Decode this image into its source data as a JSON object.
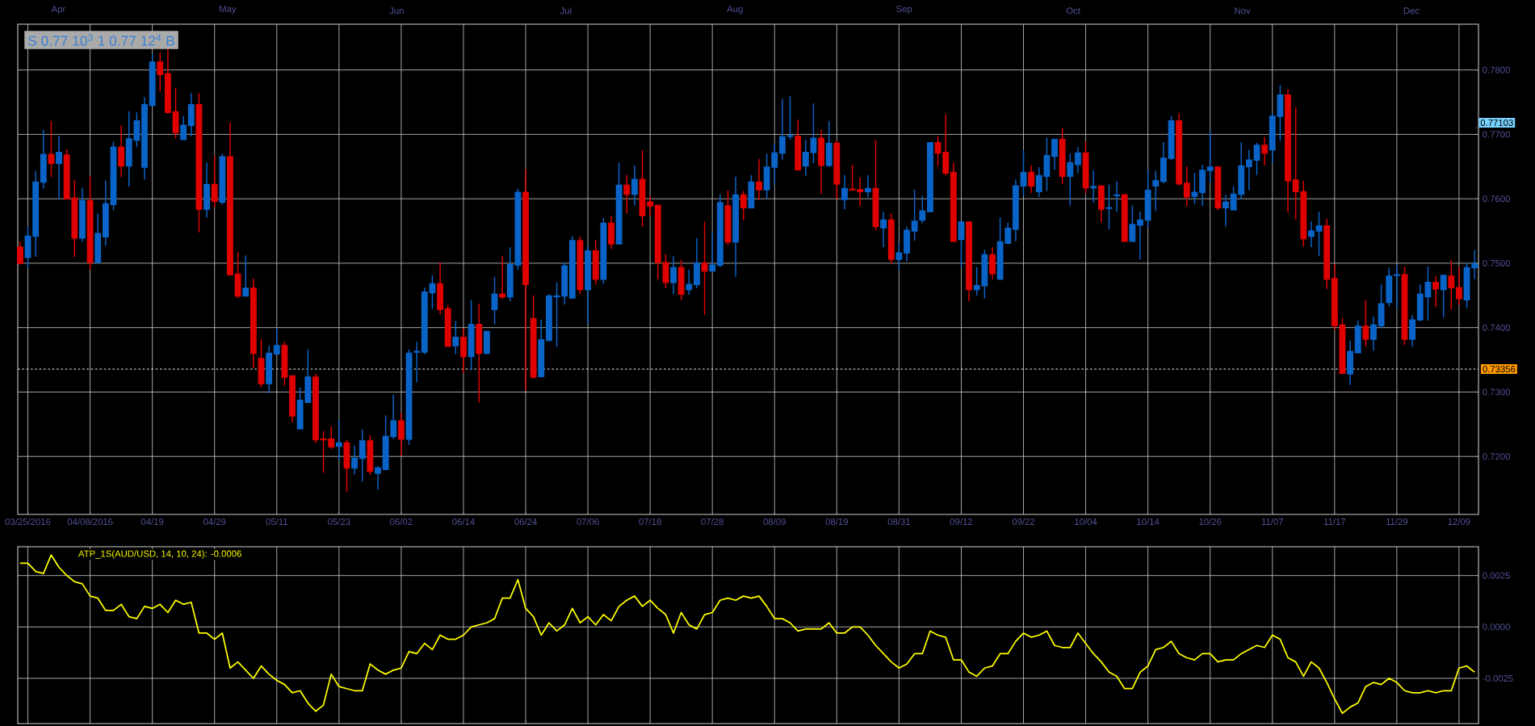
{
  "chart_data": [
    {
      "type": "candlestick",
      "categories": [
        null,
        "03/25/2016",
        null,
        null,
        null,
        null,
        null,
        null,
        null,
        "04/08/2016",
        null,
        null,
        null,
        null,
        null,
        null,
        null,
        "04/19",
        null,
        null,
        null,
        null,
        null,
        null,
        null,
        "04/29",
        null,
        null,
        null,
        null,
        null,
        null,
        null,
        "05/11",
        null,
        null,
        null,
        null,
        null,
        null,
        null,
        "05/23",
        null,
        null,
        null,
        null,
        null,
        null,
        null,
        "06/02",
        null,
        null,
        null,
        null,
        null,
        null,
        null,
        "06/14",
        null,
        null,
        null,
        null,
        null,
        null,
        null,
        "06/24",
        null,
        null,
        null,
        null,
        null,
        null,
        null,
        "07/06",
        null,
        null,
        null,
        null,
        null,
        null,
        null,
        "07/18",
        null,
        null,
        null,
        null,
        null,
        null,
        null,
        "07/28",
        null,
        null,
        null,
        null,
        null,
        null,
        null,
        "08/09",
        null,
        null,
        null,
        null,
        null,
        null,
        null,
        "08/19",
        null,
        null,
        null,
        null,
        null,
        null,
        null,
        "08/31",
        null,
        null,
        null,
        null,
        null,
        null,
        null,
        "09/12",
        null,
        null,
        null,
        null,
        null,
        null,
        null,
        "09/22",
        null,
        null,
        null,
        null,
        null,
        null,
        null,
        "10/04",
        null,
        null,
        null,
        null,
        null,
        null,
        null,
        "10/14",
        null,
        null,
        null,
        null,
        null,
        null,
        null,
        "10/26",
        null,
        null,
        null,
        null,
        null,
        null,
        null,
        "11/07",
        null,
        null,
        null,
        null,
        null,
        null,
        null,
        "11/17",
        null,
        null,
        null,
        null,
        null,
        null,
        null,
        "11/29",
        null,
        null,
        null,
        null,
        null,
        null,
        null,
        "12/09",
        null,
        null
      ],
      "ohlc": [
        [
          0.7525,
          0.7533,
          0.7498,
          0.75
        ],
        [
          0.7509,
          0.7557,
          0.7493,
          0.7542
        ],
        [
          0.7542,
          0.7643,
          0.751,
          0.7626
        ],
        [
          0.7626,
          0.7707,
          0.7616,
          0.7669
        ],
        [
          0.7669,
          0.7721,
          0.7634,
          0.7655
        ],
        [
          0.7655,
          0.7698,
          0.76,
          0.7672
        ],
        [
          0.7668,
          0.7677,
          0.76,
          0.76
        ],
        [
          0.7601,
          0.7629,
          0.751,
          0.7539
        ],
        [
          0.7539,
          0.7617,
          0.7533,
          0.7597
        ],
        [
          0.7597,
          0.7635,
          0.749,
          0.7501
        ],
        [
          0.7501,
          0.7577,
          0.7501,
          0.7546
        ],
        [
          0.7541,
          0.7628,
          0.7527,
          0.7592
        ],
        [
          0.7591,
          0.7689,
          0.7582,
          0.768
        ],
        [
          0.768,
          0.7714,
          0.7634,
          0.7651
        ],
        [
          0.7651,
          0.7736,
          0.7619,
          0.7693
        ],
        [
          0.7691,
          0.7734,
          0.768,
          0.7721
        ],
        [
          0.7649,
          0.7758,
          0.763,
          0.7746
        ],
        [
          0.7745,
          0.7825,
          0.7745,
          0.7812
        ],
        [
          0.7812,
          0.7827,
          0.7767,
          0.7793
        ],
        [
          0.7794,
          0.7834,
          0.7734,
          0.7734
        ],
        [
          0.7735,
          0.7772,
          0.7694,
          0.7703
        ],
        [
          0.7692,
          0.7728,
          0.7692,
          0.7714
        ],
        [
          0.7714,
          0.7764,
          0.7697,
          0.7746
        ],
        [
          0.7746,
          0.7764,
          0.7548,
          0.7584
        ],
        [
          0.7584,
          0.7656,
          0.7571,
          0.7622
        ],
        [
          0.7622,
          0.7667,
          0.7587,
          0.7596
        ],
        [
          0.7595,
          0.767,
          0.7591,
          0.7665
        ],
        [
          0.7665,
          0.7718,
          0.7482,
          0.7482
        ],
        [
          0.7483,
          0.7517,
          0.7446,
          0.7449
        ],
        [
          0.7449,
          0.7512,
          0.7449,
          0.7461
        ],
        [
          0.7461,
          0.7476,
          0.7337,
          0.736
        ],
        [
          0.7352,
          0.7382,
          0.7307,
          0.7313
        ],
        [
          0.7313,
          0.7372,
          0.7298,
          0.736
        ],
        [
          0.7359,
          0.74,
          0.7359,
          0.7372
        ],
        [
          0.7372,
          0.7378,
          0.731,
          0.7323
        ],
        [
          0.7325,
          0.7325,
          0.7253,
          0.7263
        ],
        [
          0.7243,
          0.7307,
          0.7243,
          0.7287
        ],
        [
          0.7284,
          0.7366,
          0.7284,
          0.7323
        ],
        [
          0.7323,
          0.7329,
          0.7221,
          0.7226
        ],
        [
          0.7227,
          0.7239,
          0.7175,
          0.7226
        ],
        [
          0.7227,
          0.7247,
          0.7212,
          0.7215
        ],
        [
          0.7216,
          0.7256,
          0.7194,
          0.7221
        ],
        [
          0.7221,
          0.7226,
          0.7145,
          0.7182
        ],
        [
          0.7182,
          0.7217,
          0.7172,
          0.7197
        ],
        [
          0.7197,
          0.7242,
          0.7161,
          0.7224
        ],
        [
          0.7224,
          0.7233,
          0.7171,
          0.7177
        ],
        [
          0.7174,
          0.7185,
          0.7149,
          0.7182
        ],
        [
          0.718,
          0.7264,
          0.718,
          0.7231
        ],
        [
          0.7231,
          0.7296,
          0.7227,
          0.7255
        ],
        [
          0.7255,
          0.7268,
          0.7201,
          0.7227
        ],
        [
          0.7227,
          0.7366,
          0.7218,
          0.736
        ],
        [
          0.7362,
          0.7378,
          0.7315,
          0.7363
        ],
        [
          0.7362,
          0.7462,
          0.7359,
          0.7455
        ],
        [
          0.7454,
          0.7481,
          0.7429,
          0.7468
        ],
        [
          0.7468,
          0.7501,
          0.742,
          0.7428
        ],
        [
          0.7429,
          0.7435,
          0.737,
          0.7371
        ],
        [
          0.7372,
          0.741,
          0.7359,
          0.7385
        ],
        [
          0.7385,
          0.7399,
          0.7329,
          0.7355
        ],
        [
          0.7355,
          0.7443,
          0.7334,
          0.7405
        ],
        [
          0.7405,
          0.7437,
          0.7284,
          0.736
        ],
        [
          0.736,
          0.7394,
          0.7359,
          0.7394
        ],
        [
          0.7428,
          0.7479,
          0.7405,
          0.7452
        ],
        [
          0.7452,
          0.7511,
          0.7444,
          0.7448
        ],
        [
          0.7448,
          0.7525,
          0.7441,
          0.7498
        ],
        [
          0.7497,
          0.7616,
          0.749,
          0.761
        ],
        [
          0.761,
          0.7646,
          0.7302,
          0.7467
        ],
        [
          0.7414,
          0.745,
          0.7321,
          0.7323
        ],
        [
          0.7324,
          0.7412,
          0.7323,
          0.7381
        ],
        [
          0.738,
          0.7452,
          0.7379,
          0.7449
        ],
        [
          0.7448,
          0.747,
          0.737,
          0.7449
        ],
        [
          0.7449,
          0.7501,
          0.7436,
          0.7496
        ],
        [
          0.7446,
          0.7542,
          0.7446,
          0.7535
        ],
        [
          0.7535,
          0.7542,
          0.7452,
          0.7459
        ],
        [
          0.7459,
          0.7526,
          0.7405,
          0.7519
        ],
        [
          0.7519,
          0.7536,
          0.7467,
          0.7475
        ],
        [
          0.7475,
          0.757,
          0.7468,
          0.7562
        ],
        [
          0.7562,
          0.7574,
          0.7522,
          0.753
        ],
        [
          0.753,
          0.7656,
          0.753,
          0.7621
        ],
        [
          0.7621,
          0.7637,
          0.7577,
          0.7607
        ],
        [
          0.7607,
          0.7652,
          0.759,
          0.763
        ],
        [
          0.763,
          0.7675,
          0.7557,
          0.7574
        ],
        [
          0.7595,
          0.7605,
          0.7574,
          0.7589
        ],
        [
          0.759,
          0.759,
          0.7475,
          0.7501
        ],
        [
          0.7501,
          0.7514,
          0.7461,
          0.747
        ],
        [
          0.747,
          0.7511,
          0.7452,
          0.7493
        ],
        [
          0.7493,
          0.7505,
          0.7443,
          0.7452
        ],
        [
          0.7459,
          0.749,
          0.7451,
          0.7467
        ],
        [
          0.7467,
          0.7539,
          0.7461,
          0.75
        ],
        [
          0.75,
          0.7564,
          0.742,
          0.7488
        ],
        [
          0.7488,
          0.7547,
          0.7487,
          0.7497
        ],
        [
          0.7497,
          0.7607,
          0.7494,
          0.7594
        ],
        [
          0.7589,
          0.7613,
          0.7528,
          0.7533
        ],
        [
          0.7533,
          0.7634,
          0.7479,
          0.7606
        ],
        [
          0.7606,
          0.7612,
          0.7567,
          0.7586
        ],
        [
          0.7586,
          0.7637,
          0.7585,
          0.7626
        ],
        [
          0.7626,
          0.7662,
          0.7598,
          0.7614
        ],
        [
          0.7614,
          0.767,
          0.76,
          0.7649
        ],
        [
          0.7649,
          0.7686,
          0.7622,
          0.7671
        ],
        [
          0.7671,
          0.7755,
          0.7661,
          0.7696
        ],
        [
          0.7697,
          0.7759,
          0.7692,
          0.7698
        ],
        [
          0.7697,
          0.7723,
          0.7645,
          0.7645
        ],
        [
          0.7651,
          0.7691,
          0.7636,
          0.7672
        ],
        [
          0.7672,
          0.7748,
          0.7655,
          0.7694
        ],
        [
          0.7694,
          0.7707,
          0.7608,
          0.7652
        ],
        [
          0.7652,
          0.7721,
          0.7649,
          0.7686
        ],
        [
          0.7686,
          0.7691,
          0.76,
          0.7623
        ],
        [
          0.7599,
          0.7637,
          0.7584,
          0.7616
        ],
        [
          0.7615,
          0.7653,
          0.7613,
          0.7614
        ],
        [
          0.7614,
          0.7633,
          0.7589,
          0.7611
        ],
        [
          0.7611,
          0.7637,
          0.7602,
          0.7616
        ],
        [
          0.7616,
          0.7691,
          0.7551,
          0.7557
        ],
        [
          0.7555,
          0.758,
          0.7525,
          0.7567
        ],
        [
          0.7567,
          0.7577,
          0.7499,
          0.7506
        ],
        [
          0.7506,
          0.7531,
          0.7489,
          0.7516
        ],
        [
          0.7516,
          0.7557,
          0.7503,
          0.7551
        ],
        [
          0.755,
          0.7614,
          0.7535,
          0.7565
        ],
        [
          0.7567,
          0.7605,
          0.7562,
          0.7581
        ],
        [
          0.758,
          0.7687,
          0.758,
          0.7687
        ],
        [
          0.7687,
          0.7697,
          0.7651,
          0.7671
        ],
        [
          0.7672,
          0.7731,
          0.7636,
          0.764
        ],
        [
          0.7641,
          0.7656,
          0.7534,
          0.7534
        ],
        [
          0.7537,
          0.7564,
          0.7494,
          0.7564
        ],
        [
          0.7564,
          0.7565,
          0.7441,
          0.7459
        ],
        [
          0.7459,
          0.7494,
          0.745,
          0.7465
        ],
        [
          0.7465,
          0.7521,
          0.7445,
          0.7513
        ],
        [
          0.7513,
          0.7525,
          0.7475,
          0.7484
        ],
        [
          0.7475,
          0.7571,
          0.7475,
          0.7533
        ],
        [
          0.7531,
          0.7563,
          0.753,
          0.7554
        ],
        [
          0.7553,
          0.763,
          0.7534,
          0.762
        ],
        [
          0.762,
          0.7675,
          0.7605,
          0.7641
        ],
        [
          0.7641,
          0.7652,
          0.7609,
          0.762
        ],
        [
          0.7611,
          0.7649,
          0.7603,
          0.7636
        ],
        [
          0.7635,
          0.7695,
          0.7612,
          0.7667
        ],
        [
          0.7666,
          0.7692,
          0.7645,
          0.7692
        ],
        [
          0.7692,
          0.771,
          0.7623,
          0.7635
        ],
        [
          0.7635,
          0.767,
          0.759,
          0.7656
        ],
        [
          0.7653,
          0.768,
          0.764,
          0.7671
        ],
        [
          0.7671,
          0.7689,
          0.7608,
          0.7617
        ],
        [
          0.7617,
          0.7644,
          0.7594,
          0.7619
        ],
        [
          0.762,
          0.7621,
          0.7563,
          0.7584
        ],
        [
          0.7585,
          0.7622,
          0.7553,
          0.7586
        ],
        [
          0.7605,
          0.7627,
          0.758,
          0.7606
        ],
        [
          0.7606,
          0.7608,
          0.7533,
          0.7534
        ],
        [
          0.7534,
          0.759,
          0.7534,
          0.756
        ],
        [
          0.7559,
          0.758,
          0.7506,
          0.7567
        ],
        [
          0.7567,
          0.7645,
          0.7556,
          0.7613
        ],
        [
          0.762,
          0.7643,
          0.7581,
          0.7628
        ],
        [
          0.7627,
          0.7688,
          0.7624,
          0.7663
        ],
        [
          0.7663,
          0.7728,
          0.766,
          0.7721
        ],
        [
          0.7721,
          0.7733,
          0.7621,
          0.7623
        ],
        [
          0.7624,
          0.765,
          0.7588,
          0.7603
        ],
        [
          0.7604,
          0.764,
          0.7592,
          0.761
        ],
        [
          0.761,
          0.7653,
          0.7589,
          0.7644
        ],
        [
          0.7644,
          0.7705,
          0.7626,
          0.7649
        ],
        [
          0.7649,
          0.7651,
          0.7582,
          0.7586
        ],
        [
          0.7586,
          0.7606,
          0.7557,
          0.7595
        ],
        [
          0.7583,
          0.7619,
          0.7583,
          0.7607
        ],
        [
          0.7607,
          0.7688,
          0.7599,
          0.7651
        ],
        [
          0.765,
          0.7676,
          0.7613,
          0.766
        ],
        [
          0.766,
          0.7687,
          0.7637,
          0.7683
        ],
        [
          0.7683,
          0.7696,
          0.7652,
          0.7671
        ],
        [
          0.7676,
          0.7733,
          0.7656,
          0.7728
        ],
        [
          0.7728,
          0.7776,
          0.769,
          0.7761
        ],
        [
          0.7761,
          0.777,
          0.7579,
          0.7628
        ],
        [
          0.7629,
          0.7742,
          0.7568,
          0.7611
        ],
        [
          0.7611,
          0.7628,
          0.7526,
          0.7538
        ],
        [
          0.7542,
          0.7565,
          0.7525,
          0.755
        ],
        [
          0.755,
          0.758,
          0.7511,
          0.7558
        ],
        [
          0.7558,
          0.7569,
          0.746,
          0.7475
        ],
        [
          0.7476,
          0.7499,
          0.7396,
          0.7403
        ],
        [
          0.7404,
          0.7415,
          0.7329,
          0.7329
        ],
        [
          0.7328,
          0.738,
          0.7311,
          0.7363
        ],
        [
          0.7361,
          0.7411,
          0.736,
          0.7402
        ],
        [
          0.7402,
          0.7443,
          0.7371,
          0.7382
        ],
        [
          0.7382,
          0.7417,
          0.7364,
          0.7404
        ],
        [
          0.7403,
          0.7467,
          0.7399,
          0.7437
        ],
        [
          0.7439,
          0.7493,
          0.7433,
          0.748
        ],
        [
          0.7481,
          0.7497,
          0.7431,
          0.7482
        ],
        [
          0.7482,
          0.7495,
          0.7373,
          0.7382
        ],
        [
          0.7382,
          0.7419,
          0.737,
          0.7412
        ],
        [
          0.7412,
          0.7467,
          0.741,
          0.7452
        ],
        [
          0.7448,
          0.7495,
          0.7411,
          0.747
        ],
        [
          0.747,
          0.748,
          0.7432,
          0.746
        ],
        [
          0.7459,
          0.7482,
          0.7416,
          0.7481
        ],
        [
          0.748,
          0.7505,
          0.7428,
          0.7462
        ],
        [
          0.7462,
          0.7494,
          0.7435,
          0.7445
        ],
        [
          0.7443,
          0.7501,
          0.743,
          0.7493
        ],
        [
          0.7493,
          0.7521,
          0.7475,
          0.7499
        ]
      ],
      "colors": [
        "#e00000",
        "#0a64c8",
        "#0a64c8",
        "#0a64c8",
        "#e00000",
        "#0a64c8",
        "#e00000",
        "#e00000",
        "#0a64c8",
        "#e00000",
        "#0a64c8",
        "#0a64c8",
        "#0a64c8",
        "#e00000",
        "#0a64c8",
        "#0a64c8",
        "#0a64c8",
        "#0a64c8",
        "#e00000",
        "#e00000",
        "#e00000",
        "#0a64c8",
        "#0a64c8",
        "#e00000",
        "#0a64c8",
        "#e00000",
        "#0a64c8",
        "#e00000",
        "#e00000",
        "#0a64c8",
        "#e00000",
        "#e00000",
        "#0a64c8",
        "#0a64c8",
        "#e00000",
        "#e00000",
        "#0a64c8",
        "#0a64c8",
        "#e00000",
        "#e00000",
        "#e00000",
        "#0a64c8",
        "#e00000",
        "#0a64c8",
        "#0a64c8",
        "#e00000",
        "#0a64c8",
        "#0a64c8",
        "#0a64c8",
        "#e00000",
        "#0a64c8",
        "#0a64c8",
        "#0a64c8",
        "#0a64c8",
        "#e00000",
        "#e00000",
        "#0a64c8",
        "#e00000",
        "#0a64c8",
        "#e00000",
        "#0a64c8",
        "#0a64c8",
        "#e00000",
        "#0a64c8",
        "#0a64c8",
        "#e00000",
        "#e00000",
        "#0a64c8",
        "#0a64c8",
        "#0a64c8",
        "#0a64c8",
        "#0a64c8",
        "#e00000",
        "#0a64c8",
        "#e00000",
        "#0a64c8",
        "#e00000",
        "#0a64c8",
        "#e00000",
        "#0a64c8",
        "#e00000",
        "#e00000",
        "#e00000",
        "#e00000",
        "#0a64c8",
        "#e00000",
        "#0a64c8",
        "#0a64c8",
        "#e00000",
        "#0a64c8",
        "#0a64c8",
        "#e00000",
        "#0a64c8",
        "#e00000",
        "#0a64c8",
        "#e00000",
        "#0a64c8",
        "#0a64c8",
        "#0a64c8",
        "#0a64c8",
        "#e00000",
        "#0a64c8",
        "#0a64c8",
        "#e00000",
        "#0a64c8",
        "#e00000",
        "#0a64c8",
        "#e00000",
        "#e00000",
        "#0a64c8",
        "#e00000",
        "#0a64c8",
        "#e00000",
        "#0a64c8",
        "#0a64c8",
        "#0a64c8",
        "#0a64c8",
        "#0a64c8",
        "#e00000",
        "#e00000",
        "#e00000",
        "#0a64c8",
        "#e00000",
        "#0a64c8",
        "#0a64c8",
        "#e00000",
        "#0a64c8",
        "#0a64c8",
        "#0a64c8",
        "#0a64c8",
        "#e00000",
        "#0a64c8",
        "#0a64c8",
        "#0a64c8",
        "#e00000",
        "#0a64c8",
        "#0a64c8",
        "#e00000",
        "#0a64c8",
        "#e00000",
        "#0a64c8",
        "#0a64c8",
        "#e00000",
        "#0a64c8",
        "#0a64c8",
        "#0a64c8",
        "#0a64c8",
        "#0a64c8",
        "#0a64c8",
        "#e00000",
        "#e00000",
        "#0a64c8",
        "#0a64c8",
        "#0a64c8",
        "#e00000",
        "#0a64c8",
        "#0a64c8",
        "#0a64c8",
        "#0a64c8",
        "#0a64c8",
        "#e00000",
        "#0a64c8",
        "#0a64c8",
        "#e00000",
        "#e00000",
        "#e00000",
        "#0a64c8",
        "#0a64c8",
        "#e00000",
        "#e00000",
        "#e00000",
        "#0a64c8",
        "#0a64c8",
        "#e00000",
        "#0a64c8",
        "#0a64c8",
        "#0a64c8",
        "#0a64c8",
        "#e00000",
        "#0a64c8",
        "#0a64c8",
        "#0a64c8",
        "#e00000",
        "#0a64c8",
        "#e00000",
        "#e00000",
        "#0a64c8",
        "#0a64c8"
      ],
      "ylim": [
        0.711,
        0.7871
      ],
      "yticks": [
        {
          "value": 0.72,
          "label": "0.7200"
        },
        {
          "value": 0.73,
          "label": "0.7300"
        },
        {
          "value": 0.74,
          "label": "0.7400"
        },
        {
          "value": 0.75,
          "label": "0.7500"
        },
        {
          "value": 0.76,
          "label": "0.7600"
        },
        {
          "value": 0.77,
          "label": "0.7700"
        },
        {
          "value": 0.78,
          "label": "0.7800"
        },
        {
          "value": 0.77103,
          "label": "0.77103"
        }
      ],
      "grid": true,
      "ref_lines": [
        {
          "axis": "y",
          "value": 0.73356,
          "label": "0.73356",
          "line_style": "dashed"
        }
      ],
      "annotations": [
        "Apr",
        "May",
        "Jun",
        "Jul",
        "Aug",
        "Sep",
        "Oct",
        "Nov",
        "Dec",
        "S 0.77 10$^{3}$ 1 0.77 12$^{4}$ B"
      ]
    },
    {
      "type": "line",
      "categories": [
        null,
        null,
        null,
        null,
        null,
        null,
        null,
        null,
        null,
        null,
        null,
        null,
        null,
        null,
        null,
        null,
        null,
        null,
        null,
        null,
        null,
        null,
        null,
        null,
        null,
        null,
        null,
        null,
        null,
        null,
        null,
        null,
        null,
        null,
        null,
        null,
        null,
        null,
        null,
        null,
        null,
        null,
        null,
        null,
        null,
        null,
        null,
        null,
        null,
        null,
        null,
        null,
        null,
        null,
        null,
        null,
        null,
        null,
        null,
        null,
        null,
        null,
        null,
        null,
        null,
        null,
        null,
        null,
        null,
        null,
        null,
        null,
        null,
        null,
        null,
        null,
        null,
        null,
        null,
        null,
        null,
        null,
        null,
        null,
        null,
        null,
        null,
        null,
        null,
        null,
        null,
        null,
        null,
        null,
        null,
        null,
        null,
        null,
        null,
        null,
        null,
        null,
        null,
        null,
        null,
        null,
        null,
        null,
        null,
        null,
        null,
        null,
        null,
        null,
        null,
        null,
        null,
        null,
        null,
        null,
        null,
        null,
        null,
        null,
        null,
        null,
        null,
        null,
        null,
        null,
        null,
        null,
        null,
        null,
        null,
        null,
        null,
        null,
        null,
        null,
        null,
        null,
        null,
        null,
        null,
        null,
        null,
        null,
        null,
        null,
        null,
        null,
        null,
        null,
        null,
        null,
        null,
        null,
        null,
        null,
        null,
        null,
        null,
        null,
        null,
        null,
        null,
        null,
        null,
        null,
        null,
        null,
        null,
        null,
        null,
        null,
        null,
        null,
        null,
        null,
        null,
        null,
        null,
        null,
        null,
        null,
        null,
        null
      ],
      "series": [
        {
          "name": "ATP_1S(AUD/USD, 14, 10, 24): -0.0006",
          "color": "#ffff00",
          "values": [
            0.0031,
            0.0031,
            0.0027,
            0.0026,
            0.0035,
            0.0029,
            0.0025,
            0.0022,
            0.0021,
            0.0015,
            0.0014,
            0.0008,
            0.0008,
            0.0011,
            0.0005,
            0.0004,
            0.001,
            0.0009,
            0.0011,
            0.0007,
            0.0013,
            0.0011,
            0.0012,
            -0.0003,
            -0.0003,
            -0.0006,
            -0.0003,
            -0.002,
            -0.0017,
            -0.0021,
            -0.0025,
            -0.0019,
            -0.0023,
            -0.0026,
            -0.0028,
            -0.0032,
            -0.0031,
            -0.0037,
            -0.0041,
            -0.0038,
            -0.0023,
            -0.0029,
            -0.003,
            -0.0031,
            -0.0031,
            -0.0018,
            -0.0021,
            -0.0023,
            -0.0021,
            -0.002,
            -0.0012,
            -0.0013,
            -0.0008,
            -0.0011,
            -0.0004,
            -0.0006,
            -0.0006,
            -0.0004,
            0.0,
            0.0001,
            0.0002,
            0.0004,
            0.0014,
            0.0014,
            0.0023,
            0.0009,
            0.0005,
            -0.0004,
            0.0002,
            -0.0002,
            0.0001,
            0.0009,
            0.0002,
            0.0005,
            0.0001,
            0.0006,
            0.0003,
            0.001,
            0.0013,
            0.0015,
            0.001,
            0.0013,
            0.0009,
            0.0006,
            -0.0003,
            0.0007,
            0.0001,
            -0.0001,
            0.0006,
            0.0007,
            0.0013,
            0.0014,
            0.0013,
            0.0015,
            0.0014,
            0.0015,
            0.001,
            0.0004,
            0.0004,
            0.0002,
            -0.0002,
            -0.0001,
            -0.0001,
            -0.0001,
            0.0002,
            -0.0003,
            -0.0003,
            0.0,
            0.0,
            -0.0004,
            -0.0009,
            -0.0013,
            -0.0017,
            -0.002,
            -0.0018,
            -0.0013,
            -0.0013,
            -0.0002,
            -0.0004,
            -0.0005,
            -0.0016,
            -0.0016,
            -0.0022,
            -0.0024,
            -0.002,
            -0.0019,
            -0.0013,
            -0.0013,
            -0.0007,
            -0.0003,
            -0.0005,
            -0.0004,
            -0.0002,
            -0.0009,
            -0.001,
            -0.001,
            -0.0003,
            -0.0008,
            -0.0013,
            -0.0017,
            -0.0022,
            -0.0024,
            -0.003,
            -0.003,
            -0.0022,
            -0.0019,
            -0.0011,
            -0.001,
            -0.0007,
            -0.0013,
            -0.0015,
            -0.0016,
            -0.0013,
            -0.0013,
            -0.0017,
            -0.0016,
            -0.0016,
            -0.0013,
            -0.0011,
            -0.0009,
            -0.001,
            -0.0004,
            -0.0006,
            -0.0015,
            -0.0017,
            -0.0024,
            -0.0017,
            -0.002,
            -0.0027,
            -0.0035,
            -0.0042,
            -0.0039,
            -0.0037,
            -0.0029,
            -0.0027,
            -0.0028,
            -0.0025,
            -0.0027,
            -0.0031,
            -0.0032,
            -0.0032,
            -0.0031,
            -0.0032,
            -0.0031,
            -0.0031,
            -0.002,
            -0.0019,
            -0.0022
          ]
        }
      ],
      "ylim": [
        -0.0047,
        0.0039
      ],
      "yticks": [
        {
          "value": -0.0025,
          "label": "-0.0025"
        },
        {
          "value": 0,
          "label": "0.0000"
        },
        {
          "value": 0.0025,
          "label": "0.0025"
        }
      ],
      "tick_labels": "y",
      "grid": true,
      "legend": "top left"
    }
  ]
}
